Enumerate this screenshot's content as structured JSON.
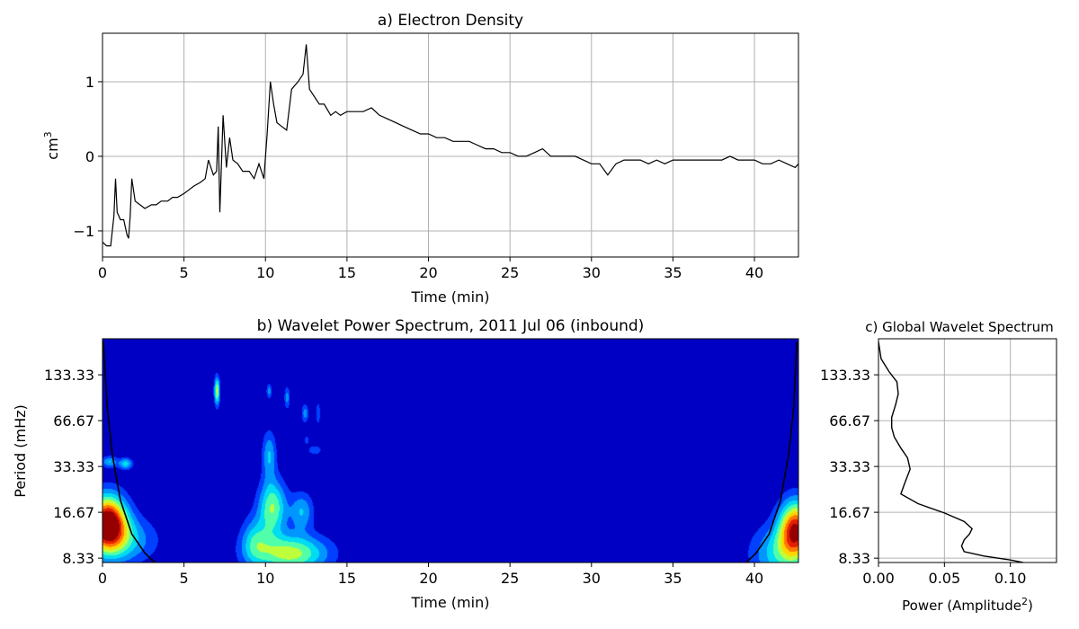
{
  "chart_data": [
    {
      "type": "line",
      "title": "a) Electron Density",
      "xlabel": "Time (min)",
      "ylabel": "cm",
      "ylabel_superscript": "3",
      "xlim": [
        0,
        42.7
      ],
      "ylim": [
        -1.35,
        1.65
      ],
      "xticks": [
        0,
        5,
        10,
        15,
        20,
        25,
        30,
        35,
        40
      ],
      "yticks": [
        -1,
        0,
        1
      ],
      "ytick_labels": [
        "−1",
        "0",
        "1"
      ],
      "grid": true,
      "series_color": "#000000",
      "series": [
        {
          "x": [
            0,
            0.25,
            0.5,
            0.7,
            0.8,
            0.9,
            1.0,
            1.1,
            1.3,
            1.5,
            1.6,
            1.7,
            1.8,
            2.0,
            2.3,
            2.6,
            3.0,
            3.3,
            3.6,
            4.0,
            4.3,
            4.6,
            5.0,
            5.3,
            5.6,
            6.0,
            6.3,
            6.5,
            6.8,
            7.0,
            7.1,
            7.2,
            7.4,
            7.6,
            7.8,
            8.0,
            8.3,
            8.6,
            9.0,
            9.3,
            9.6,
            9.9,
            10.1,
            10.3,
            10.5,
            10.7,
            11.0,
            11.3,
            11.6,
            12.0,
            12.3,
            12.5,
            12.7,
            13.0,
            13.3,
            13.6,
            14.0,
            14.3,
            14.6,
            15.0,
            15.5,
            16.0,
            16.5,
            17.0,
            17.5,
            18.0,
            18.5,
            19.0,
            19.5,
            20.0,
            20.5,
            21.0,
            21.5,
            22.0,
            22.5,
            23.0,
            23.5,
            24.0,
            24.5,
            25.0,
            25.5,
            26.0,
            26.5,
            27.0,
            27.5,
            28.0,
            28.5,
            29.0,
            29.5,
            30.0,
            30.5,
            31.0,
            31.5,
            32.0,
            32.5,
            33.0,
            33.5,
            34.0,
            34.5,
            35.0,
            35.5,
            36.0,
            36.5,
            37.0,
            37.5,
            38.0,
            38.5,
            39.0,
            39.5,
            40.0,
            40.5,
            41.0,
            41.5,
            42.0,
            42.5,
            42.7
          ],
          "y": [
            -1.15,
            -1.2,
            -1.2,
            -0.8,
            -0.3,
            -0.75,
            -0.8,
            -0.85,
            -0.85,
            -1.05,
            -1.1,
            -0.8,
            -0.3,
            -0.6,
            -0.65,
            -0.7,
            -0.65,
            -0.65,
            -0.6,
            -0.6,
            -0.55,
            -0.55,
            -0.5,
            -0.45,
            -0.4,
            -0.35,
            -0.3,
            -0.05,
            -0.25,
            -0.2,
            0.4,
            -0.75,
            0.55,
            -0.15,
            0.25,
            -0.05,
            -0.1,
            -0.2,
            -0.2,
            -0.3,
            -0.1,
            -0.3,
            0.3,
            1.0,
            0.7,
            0.45,
            0.4,
            0.35,
            0.9,
            1.0,
            1.1,
            1.5,
            0.9,
            0.8,
            0.7,
            0.7,
            0.55,
            0.6,
            0.55,
            0.6,
            0.6,
            0.6,
            0.65,
            0.55,
            0.5,
            0.45,
            0.4,
            0.35,
            0.3,
            0.3,
            0.25,
            0.25,
            0.2,
            0.2,
            0.2,
            0.15,
            0.1,
            0.1,
            0.05,
            0.05,
            0.0,
            0.0,
            0.05,
            0.1,
            0.0,
            0.0,
            0.0,
            0.0,
            -0.05,
            -0.1,
            -0.1,
            -0.25,
            -0.1,
            -0.05,
            -0.05,
            -0.05,
            -0.1,
            -0.05,
            -0.1,
            -0.05,
            -0.05,
            -0.05,
            -0.05,
            -0.05,
            -0.05,
            -0.05,
            0.0,
            -0.05,
            -0.05,
            -0.05,
            -0.1,
            -0.1,
            -0.05,
            -0.1,
            -0.15,
            -0.1
          ]
        }
      ]
    },
    {
      "type": "heatmap",
      "title": "b) Wavelet Power Spectrum, 2011 Jul 06 (inbound)",
      "xlabel": "Time (min)",
      "ylabel": "Period (mHz)",
      "xlim": [
        0,
        42.7
      ],
      "xticks": [
        0,
        5,
        10,
        15,
        20,
        25,
        30,
        35,
        40
      ],
      "yscale": "log",
      "ylim": [
        7.8,
        230
      ],
      "yticks": [
        8.33,
        16.67,
        33.33,
        66.67,
        133.33
      ],
      "ytick_labels": [
        "8.33",
        "16.67",
        "33.33",
        "66.67",
        "133.33"
      ],
      "colormap": "jet",
      "background_color": "#0000c4",
      "hotspots": [
        {
          "t": 0.3,
          "f": 14.5,
          "sigma_t": 0.8,
          "sigma_f": 0.28,
          "power": 1.0
        },
        {
          "t": 0.4,
          "f": 36,
          "sigma_t": 0.35,
          "sigma_f": 0.06,
          "power": 0.3
        },
        {
          "t": 1.4,
          "f": 35,
          "sigma_t": 0.3,
          "sigma_f": 0.06,
          "power": 0.35
        },
        {
          "t": 1.0,
          "f": 11,
          "sigma_t": 1.5,
          "sigma_f": 0.25,
          "power": 0.35
        },
        {
          "t": 7.0,
          "f": 105,
          "sigma_t": 0.12,
          "sigma_f": 0.15,
          "power": 0.55
        },
        {
          "t": 10.4,
          "f": 18,
          "sigma_t": 0.6,
          "sigma_f": 0.3,
          "power": 0.5
        },
        {
          "t": 10.2,
          "f": 40,
          "sigma_t": 0.3,
          "sigma_f": 0.25,
          "power": 0.3
        },
        {
          "t": 11.5,
          "f": 9,
          "sigma_t": 1.6,
          "sigma_f": 0.2,
          "power": 0.55
        },
        {
          "t": 9.3,
          "f": 11,
          "sigma_t": 0.6,
          "sigma_f": 0.25,
          "power": 0.3
        },
        {
          "t": 12.2,
          "f": 17,
          "sigma_t": 0.5,
          "sigma_f": 0.2,
          "power": 0.3
        },
        {
          "t": 10.2,
          "f": 105,
          "sigma_t": 0.12,
          "sigma_f": 0.08,
          "power": 0.25
        },
        {
          "t": 11.3,
          "f": 95,
          "sigma_t": 0.12,
          "sigma_f": 0.12,
          "power": 0.25
        },
        {
          "t": 12.4,
          "f": 75,
          "sigma_t": 0.15,
          "sigma_f": 0.1,
          "power": 0.25
        },
        {
          "t": 13.2,
          "f": 75,
          "sigma_t": 0.1,
          "sigma_f": 0.12,
          "power": 0.2
        },
        {
          "t": 13.0,
          "f": 43,
          "sigma_t": 0.3,
          "sigma_f": 0.05,
          "power": 0.2
        },
        {
          "t": 12.5,
          "f": 50,
          "sigma_t": 0.08,
          "sigma_f": 0.05,
          "power": 0.2
        },
        {
          "t": 42.5,
          "f": 13,
          "sigma_t": 0.7,
          "sigma_f": 0.3,
          "power": 0.85
        },
        {
          "t": 41.5,
          "f": 9,
          "sigma_t": 1.2,
          "sigma_f": 0.3,
          "power": 0.35
        }
      ],
      "cone_of_influence": {
        "color": "#000000",
        "left": {
          "t": [
            0.05,
            0.3,
            0.6,
            1.1,
            1.8,
            2.6,
            3.2
          ],
          "f": [
            220,
            80,
            40,
            20,
            12,
            9,
            7.8
          ]
        },
        "right": {
          "t": [
            42.6,
            42.4,
            42.1,
            41.6,
            40.9,
            40.1,
            39.5
          ],
          "f": [
            220,
            80,
            40,
            20,
            12,
            9,
            7.8
          ]
        }
      }
    },
    {
      "type": "line",
      "title": "c) Global Wavelet Spectrum",
      "xlabel": "Power (Amplitude",
      "xlabel_superscript": "2",
      "xlabel_suffix": ")",
      "xlim": [
        0,
        0.135
      ],
      "xticks": [
        0.0,
        0.05,
        0.1
      ],
      "xtick_labels": [
        "0.00",
        "0.05",
        "0.10"
      ],
      "yscale": "log",
      "ylim": [
        7.8,
        230
      ],
      "yticks": [
        8.33,
        16.67,
        33.33,
        66.67,
        133.33
      ],
      "ytick_labels": [
        "8.33",
        "16.67",
        "33.33",
        "66.67",
        "133.33"
      ],
      "grid": true,
      "series_color": "#000000",
      "series": [
        {
          "power": [
            0.0,
            0.002,
            0.008,
            0.014,
            0.015,
            0.013,
            0.01,
            0.01,
            0.012,
            0.017,
            0.022,
            0.024,
            0.02,
            0.017,
            0.03,
            0.05,
            0.065,
            0.071,
            0.069,
            0.065,
            0.063,
            0.065,
            0.08,
            0.1,
            0.11
          ],
          "period": [
            220,
            170,
            140,
            120,
            100,
            85,
            70,
            60,
            52,
            44,
            38,
            32,
            26,
            22,
            19,
            16.5,
            14.5,
            13,
            12,
            11,
            10,
            9.2,
            8.6,
            8.1,
            7.8
          ]
        }
      ]
    }
  ]
}
